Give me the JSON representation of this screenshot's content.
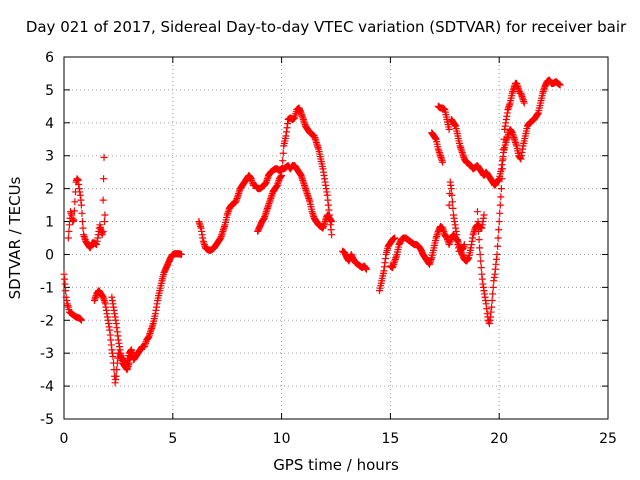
{
  "chart_data": {
    "type": "scatter",
    "title": "Day 021 of 2017, Sidereal Day-to-day VTEC variation (SDTVAR) for receiver bair",
    "xlabel": "GPS time / hours",
    "ylabel": "SDTVAR / TECUs",
    "xlim": [
      0,
      25
    ],
    "ylim": [
      -5,
      6
    ],
    "x_ticks": [
      "0",
      "5",
      "10",
      "15",
      "20",
      "25"
    ],
    "y_ticks": [
      "-5",
      "-4",
      "-3",
      "-2",
      "-1",
      "0",
      "1",
      "2",
      "3",
      "4",
      "5",
      "6"
    ],
    "grid": true,
    "marker": "+",
    "colors": {
      "series": "#ff0000",
      "grid": "#a0a0a0",
      "axis": "#000000"
    },
    "segments": [
      {
        "x": [
          0.0,
          0.05,
          0.1,
          0.15,
          0.2,
          0.25,
          0.35,
          0.45,
          0.55,
          0.65,
          0.75,
          0.8
        ],
        "y": [
          -0.6,
          -0.9,
          -1.3,
          -1.5,
          -1.6,
          -1.75,
          -1.8,
          -1.85,
          -1.9,
          -1.92,
          -1.95,
          -2.0
        ]
      },
      {
        "x": [
          0.2,
          0.25,
          0.3,
          0.35,
          0.4,
          0.45,
          0.5,
          0.55,
          0.6,
          0.65,
          0.7,
          0.75,
          0.8,
          0.85,
          0.9,
          1.0,
          1.1,
          1.2,
          1.3,
          1.4,
          1.5,
          1.55,
          1.6,
          1.65,
          1.7,
          1.75,
          1.8
        ],
        "y": [
          0.5,
          0.9,
          1.3,
          1.2,
          1.0,
          1.05,
          1.6,
          2.2,
          2.3,
          2.25,
          2.0,
          1.8,
          1.5,
          1.0,
          0.6,
          0.4,
          0.3,
          0.2,
          0.35,
          0.35,
          0.3,
          0.5,
          0.7,
          0.9,
          0.75,
          0.6,
          0.7
        ]
      },
      {
        "x": [
          1.8,
          1.82,
          1.84,
          1.86,
          1.88
        ],
        "y": [
          1.65,
          2.3,
          2.95,
          1.0,
          1.2
        ]
      },
      {
        "x": [
          1.4,
          1.5,
          1.6,
          1.7,
          1.8,
          1.9,
          2.0,
          2.1,
          2.15,
          2.2,
          2.25,
          2.3,
          2.35,
          2.4,
          2.45,
          2.5,
          2.55,
          2.6,
          2.7,
          2.8,
          2.9,
          3.0,
          3.1,
          3.2,
          3.3,
          3.4,
          3.5,
          3.6,
          3.7,
          3.8,
          3.9,
          4.0,
          4.1,
          4.2,
          4.3,
          4.4,
          4.5,
          4.6,
          4.7,
          4.8,
          4.9,
          5.0,
          5.1,
          5.2,
          5.3,
          5.4
        ],
        "y": [
          -1.4,
          -1.2,
          -1.1,
          -1.2,
          -1.3,
          -1.5,
          -1.9,
          -2.3,
          -2.6,
          -2.9,
          -3.1,
          -3.5,
          -3.9,
          -3.7,
          -3.3,
          -3.0,
          -3.0,
          -3.1,
          -3.2,
          -3.4,
          -3.5,
          -3.3,
          -2.9,
          -3.2,
          -3.1,
          -3.0,
          -2.9,
          -2.8,
          -2.8,
          -2.6,
          -2.5,
          -2.3,
          -2.1,
          -1.8,
          -1.4,
          -1.1,
          -0.8,
          -0.55,
          -0.4,
          -0.25,
          -0.1,
          0.0,
          0.02,
          0.02,
          0.02,
          0.0
        ]
      },
      {
        "x": [
          2.2,
          2.3,
          2.4,
          2.5,
          2.6,
          2.7,
          2.8,
          2.9,
          3.0,
          3.1
        ],
        "y": [
          -1.3,
          -1.7,
          -2.1,
          -2.6,
          -3.0,
          -3.3,
          -3.4,
          -3.3,
          -3.0,
          -2.9
        ]
      },
      {
        "x": [
          6.2,
          6.3,
          6.4,
          6.5,
          6.6,
          6.7,
          6.8,
          6.9,
          7.0,
          7.1,
          7.2,
          7.3,
          7.4,
          7.5,
          7.6,
          7.7,
          7.8,
          7.9,
          8.0,
          8.1,
          8.2,
          8.3,
          8.4,
          8.5,
          8.6,
          8.7,
          8.8,
          8.9,
          9.0,
          9.1,
          9.2,
          9.3,
          9.4,
          9.5,
          9.6,
          9.7,
          9.8,
          9.9,
          10.0,
          10.1,
          10.2,
          10.3,
          10.4,
          10.5,
          10.6,
          10.7,
          10.8,
          10.9,
          11.0,
          11.1,
          11.2,
          11.3,
          11.4,
          11.5,
          11.6,
          11.7,
          11.8,
          11.9,
          12.0,
          12.1,
          12.2,
          12.3
        ],
        "y": [
          1.0,
          0.8,
          0.4,
          0.2,
          0.15,
          0.12,
          0.15,
          0.2,
          0.3,
          0.4,
          0.5,
          0.7,
          0.9,
          1.2,
          1.4,
          1.5,
          1.55,
          1.6,
          1.8,
          2.0,
          2.1,
          2.2,
          2.3,
          2.4,
          2.3,
          2.1,
          2.1,
          2.0,
          2.0,
          2.05,
          2.1,
          2.2,
          2.4,
          2.5,
          2.55,
          2.6,
          2.6,
          2.55,
          2.6,
          2.6,
          2.65,
          2.7,
          2.6,
          2.7,
          2.7,
          2.6,
          2.5,
          2.4,
          2.2,
          2.0,
          1.8,
          1.6,
          1.3,
          1.1,
          1.0,
          0.9,
          0.85,
          0.8,
          1.0,
          1.2,
          1.1,
          1.0
        ]
      },
      {
        "x": [
          8.9,
          9.0,
          9.1,
          9.2,
          9.3,
          9.4,
          9.5,
          9.6,
          9.7,
          9.8,
          9.9,
          10.0,
          10.1,
          10.2,
          10.3,
          10.4,
          10.5,
          10.6,
          10.7,
          10.8,
          10.9,
          11.0,
          11.1,
          11.2,
          11.3,
          11.4,
          11.5,
          11.6,
          11.7,
          11.8,
          11.9,
          12.0,
          12.1,
          12.2,
          12.3
        ],
        "y": [
          0.7,
          0.85,
          1.0,
          1.1,
          1.3,
          1.5,
          1.7,
          1.9,
          2.0,
          2.1,
          2.3,
          2.4,
          3.3,
          3.6,
          4.1,
          4.15,
          4.1,
          4.15,
          4.4,
          4.45,
          4.3,
          4.1,
          3.9,
          3.8,
          3.7,
          3.65,
          3.6,
          3.4,
          3.2,
          2.9,
          2.6,
          2.2,
          1.8,
          1.2,
          0.6
        ]
      },
      {
        "x": [
          12.8,
          12.9,
          13.0,
          13.1,
          13.2,
          13.3,
          13.4,
          13.5,
          13.6,
          13.7,
          13.8,
          13.9
        ],
        "y": [
          0.1,
          0.05,
          -0.1,
          -0.2,
          0.0,
          -0.15,
          -0.25,
          -0.3,
          -0.35,
          -0.4,
          -0.35,
          -0.45
        ]
      },
      {
        "x": [
          14.5,
          14.6,
          14.7,
          14.8,
          14.9,
          15.0,
          15.1,
          15.2
        ],
        "y": [
          -1.1,
          -0.8,
          -0.5,
          0.0,
          0.25,
          0.35,
          0.45,
          0.5
        ]
      },
      {
        "x": [
          15.0,
          15.1,
          15.2,
          15.3,
          15.4,
          15.5,
          15.6,
          15.7,
          15.8,
          15.9,
          16.0,
          16.1,
          16.2,
          16.3,
          16.4,
          16.5,
          16.6,
          16.7,
          16.8,
          16.9,
          17.0,
          17.1,
          17.2,
          17.3,
          17.4,
          17.5,
          17.6,
          17.7,
          17.8,
          17.9,
          18.0,
          18.1,
          18.2,
          18.3,
          18.4,
          18.5,
          18.6,
          18.7,
          18.8,
          18.9,
          19.0,
          19.1,
          19.2,
          19.3
        ],
        "y": [
          -0.35,
          -0.4,
          -0.2,
          0.0,
          0.3,
          0.45,
          0.5,
          0.5,
          0.45,
          0.4,
          0.35,
          0.3,
          0.3,
          0.25,
          0.15,
          0.0,
          -0.1,
          -0.2,
          -0.3,
          -0.1,
          0.2,
          0.5,
          0.7,
          0.85,
          0.8,
          0.6,
          0.5,
          0.3,
          0.5,
          0.6,
          0.5,
          0.4,
          0.2,
          0.0,
          -0.15,
          -0.2,
          -0.1,
          0.2,
          0.6,
          0.8,
          0.9,
          0.85,
          0.8,
          1.2
        ]
      },
      {
        "x": [
          17.7,
          17.75,
          17.8,
          17.85,
          17.9,
          17.95,
          18.0,
          18.05,
          18.1,
          18.15,
          18.2,
          18.25,
          18.3,
          18.35,
          18.4
        ],
        "y": [
          1.5,
          2.2,
          2.0,
          1.6,
          1.2,
          1.0,
          0.8,
          0.6,
          0.3,
          0.1,
          0.1,
          0.2,
          0.15,
          0.2,
          0.3
        ]
      },
      {
        "x": [
          17.2,
          17.3,
          17.4,
          17.5,
          17.6,
          17.7
        ],
        "y": [
          4.5,
          4.45,
          4.45,
          4.4,
          4.1,
          3.8
        ]
      },
      {
        "x": [
          16.9,
          17.0,
          17.1,
          17.2,
          17.3,
          17.4
        ],
        "y": [
          3.7,
          3.6,
          3.5,
          3.2,
          3.0,
          2.8
        ]
      },
      {
        "x": [
          17.8,
          17.9,
          18.0,
          18.1,
          18.2,
          18.3,
          18.4,
          18.5,
          18.6,
          18.7,
          18.8,
          18.9,
          19.0,
          19.1,
          19.2,
          19.3,
          19.4,
          19.5,
          19.6,
          19.7,
          19.8,
          19.9,
          20.0,
          20.1,
          20.2,
          20.3,
          20.4,
          20.5,
          20.6,
          20.7,
          20.8,
          20.9,
          21.0,
          21.1,
          21.2,
          21.3,
          21.4,
          21.5,
          21.6,
          21.7,
          21.8,
          21.9,
          22.0,
          22.1,
          22.2,
          22.3,
          22.4,
          22.5,
          22.6,
          22.7,
          22.8
        ],
        "y": [
          4.1,
          4.0,
          3.9,
          3.6,
          3.3,
          3.1,
          2.9,
          2.8,
          2.75,
          2.7,
          2.6,
          2.65,
          2.7,
          2.6,
          2.5,
          2.4,
          2.5,
          2.4,
          2.3,
          2.2,
          2.1,
          2.2,
          2.3,
          2.6,
          3.1,
          3.4,
          3.6,
          3.8,
          3.7,
          3.5,
          3.3,
          3.0,
          2.9,
          3.3,
          3.6,
          3.9,
          4.0,
          4.05,
          4.1,
          4.2,
          4.3,
          4.6,
          4.9,
          5.1,
          5.25,
          5.3,
          5.2,
          5.2,
          5.25,
          5.2,
          5.15
        ]
      },
      {
        "x": [
          19.0,
          19.05,
          19.1,
          19.15,
          19.2,
          19.25,
          19.3,
          19.35,
          19.4,
          19.45,
          19.5,
          19.55,
          19.6,
          19.65,
          19.7,
          19.75,
          19.8,
          19.85,
          19.9,
          19.95,
          20.0,
          20.05,
          20.1,
          20.15,
          20.2,
          20.25,
          20.3,
          20.35,
          20.4,
          20.45,
          20.5,
          20.55,
          20.6,
          20.65,
          20.7,
          20.75,
          20.8,
          20.85,
          20.9,
          20.95,
          21.0,
          21.05,
          21.1,
          21.15
        ],
        "y": [
          1.3,
          0.7,
          0.2,
          -0.2,
          -0.6,
          -0.9,
          -1.1,
          -1.3,
          -1.5,
          -1.8,
          -2.0,
          -2.1,
          -1.9,
          -1.6,
          -1.2,
          -0.8,
          -0.6,
          -0.3,
          0.0,
          0.5,
          1.0,
          1.5,
          2.0,
          2.6,
          3.2,
          3.8,
          4.0,
          4.2,
          4.4,
          4.5,
          4.6,
          4.75,
          4.9,
          5.0,
          5.1,
          5.2,
          5.2,
          5.1,
          5.0,
          4.9,
          4.9,
          4.8,
          4.7,
          4.6
        ]
      }
    ]
  }
}
